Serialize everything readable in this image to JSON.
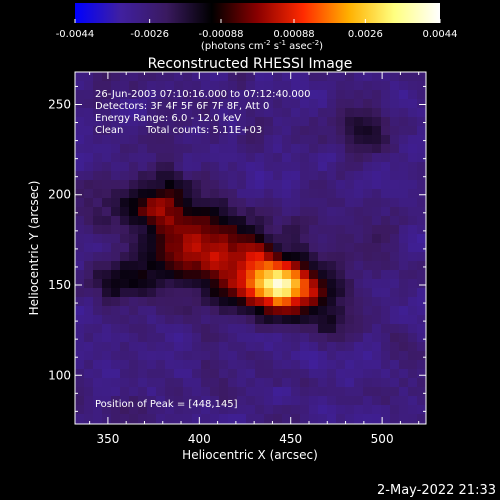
{
  "colorbar": {
    "tick_labels": [
      "-0.0044",
      "-0.0026",
      "-0.00088",
      "0.00088",
      "0.0026",
      "0.0044"
    ],
    "tick_values": [
      -0.0044,
      -0.0026,
      -0.00088,
      0.00088,
      0.0026,
      0.0044
    ],
    "range": [
      -0.0044,
      0.0044
    ],
    "colors": [
      "#0000ff",
      "#4020a0",
      "#3a1a60",
      "#000000",
      "#8a0000",
      "#ff2a00",
      "#ffb000",
      "#ffff80",
      "#ffffff"
    ],
    "unit_prefix": "(photons cm",
    "unit_sup1": "-2",
    "unit_mid": " s",
    "unit_sup2": "-1",
    "unit_mid2": " asec",
    "unit_sup3": "-2",
    "unit_suffix": ")"
  },
  "chart_data": {
    "type": "heatmap",
    "title": "Reconstructed RHESSI Image",
    "xlabel": "Heliocentric X (arcsec)",
    "ylabel": "Heliocentric Y (arcsec)",
    "xlim": [
      332,
      524
    ],
    "ylim": [
      73,
      268
    ],
    "x_ticks": [
      350,
      400,
      450,
      500
    ],
    "y_ticks": [
      100,
      150,
      200,
      250
    ],
    "peak": [
      448,
      145
    ],
    "annotations": {
      "time": "26-Jun-2003 07:10:16.000 to 07:12:40.000",
      "detectors": "Detectors: 3F 4F 5F 6F 7F 8F, Att 0",
      "energy": "Energy Range: 6.0 - 12.0 keV",
      "method": "Clean",
      "counts": "Total counts: 5.11E+03",
      "peak_label": "Position of Peak = [448,145]"
    }
  },
  "footer": {
    "timestamp": "2-May-2022 21:33"
  }
}
